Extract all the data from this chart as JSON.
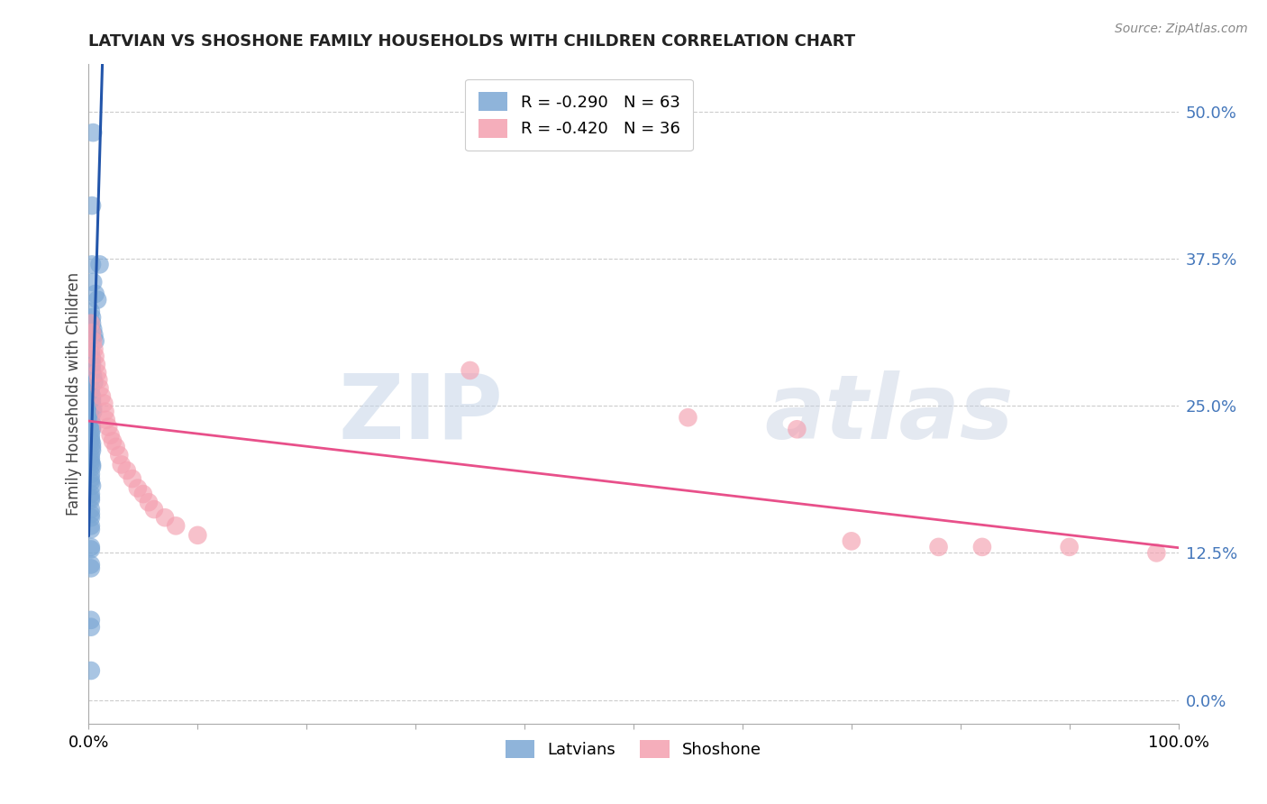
{
  "title": "LATVIAN VS SHOSHONE FAMILY HOUSEHOLDS WITH CHILDREN CORRELATION CHART",
  "source": "Source: ZipAtlas.com",
  "ylabel": "Family Households with Children",
  "xlim": [
    0.0,
    1.0
  ],
  "ylim": [
    -0.02,
    0.54
  ],
  "xticks": [
    0.0,
    0.1,
    0.2,
    0.3,
    0.4,
    0.5,
    0.6,
    0.7,
    0.8,
    0.9,
    1.0
  ],
  "xticklabels": [
    "0.0%",
    "",
    "",
    "",
    "",
    "",
    "",
    "",
    "",
    "",
    "100.0%"
  ],
  "ytick_positions": [
    0.0,
    0.125,
    0.25,
    0.375,
    0.5
  ],
  "ytick_labels_right": [
    "0.0%",
    "12.5%",
    "25.0%",
    "37.5%",
    "50.0%"
  ],
  "latvian_R": -0.29,
  "latvian_N": 63,
  "shoshone_R": -0.42,
  "shoshone_N": 36,
  "latvian_color": "#7ba7d4",
  "shoshone_color": "#f4a0b0",
  "latvian_line_color": "#2255aa",
  "shoshone_line_color": "#e8508a",
  "latvian_line_dashed_color": "#8ab0d0",
  "watermark_zip": "ZIP",
  "watermark_atlas": "atlas",
  "latvian_x": [
    0.004,
    0.003,
    0.01,
    0.003,
    0.004,
    0.006,
    0.008,
    0.002,
    0.003,
    0.003,
    0.004,
    0.005,
    0.006,
    0.002,
    0.003,
    0.003,
    0.003,
    0.004,
    0.005,
    0.002,
    0.002,
    0.003,
    0.003,
    0.003,
    0.003,
    0.004,
    0.004,
    0.002,
    0.002,
    0.002,
    0.003,
    0.003,
    0.003,
    0.002,
    0.002,
    0.002,
    0.003,
    0.003,
    0.003,
    0.002,
    0.002,
    0.002,
    0.003,
    0.003,
    0.002,
    0.002,
    0.002,
    0.003,
    0.002,
    0.002,
    0.002,
    0.002,
    0.002,
    0.002,
    0.002,
    0.002,
    0.002,
    0.002,
    0.002,
    0.002,
    0.002,
    0.002,
    0.002
  ],
  "latvian_y": [
    0.482,
    0.42,
    0.37,
    0.37,
    0.355,
    0.345,
    0.34,
    0.33,
    0.325,
    0.32,
    0.315,
    0.31,
    0.305,
    0.295,
    0.29,
    0.285,
    0.28,
    0.275,
    0.27,
    0.265,
    0.26,
    0.258,
    0.255,
    0.252,
    0.25,
    0.248,
    0.245,
    0.242,
    0.24,
    0.238,
    0.235,
    0.232,
    0.23,
    0.225,
    0.222,
    0.22,
    0.218,
    0.215,
    0.212,
    0.208,
    0.205,
    0.202,
    0.2,
    0.198,
    0.192,
    0.188,
    0.185,
    0.182,
    0.175,
    0.172,
    0.17,
    0.162,
    0.158,
    0.155,
    0.148,
    0.145,
    0.13,
    0.128,
    0.115,
    0.112,
    0.068,
    0.062,
    0.025
  ],
  "shoshone_x": [
    0.002,
    0.003,
    0.004,
    0.005,
    0.006,
    0.007,
    0.008,
    0.009,
    0.01,
    0.012,
    0.014,
    0.015,
    0.016,
    0.018,
    0.02,
    0.022,
    0.025,
    0.028,
    0.03,
    0.035,
    0.04,
    0.045,
    0.05,
    0.055,
    0.06,
    0.07,
    0.08,
    0.1,
    0.35,
    0.55,
    0.65,
    0.7,
    0.78,
    0.82,
    0.9,
    0.98
  ],
  "shoshone_y": [
    0.32,
    0.312,
    0.305,
    0.298,
    0.292,
    0.285,
    0.278,
    0.272,
    0.265,
    0.258,
    0.252,
    0.245,
    0.238,
    0.232,
    0.225,
    0.22,
    0.215,
    0.208,
    0.2,
    0.195,
    0.188,
    0.18,
    0.175,
    0.168,
    0.162,
    0.155,
    0.148,
    0.14,
    0.28,
    0.24,
    0.23,
    0.135,
    0.13,
    0.13,
    0.13,
    0.125
  ]
}
